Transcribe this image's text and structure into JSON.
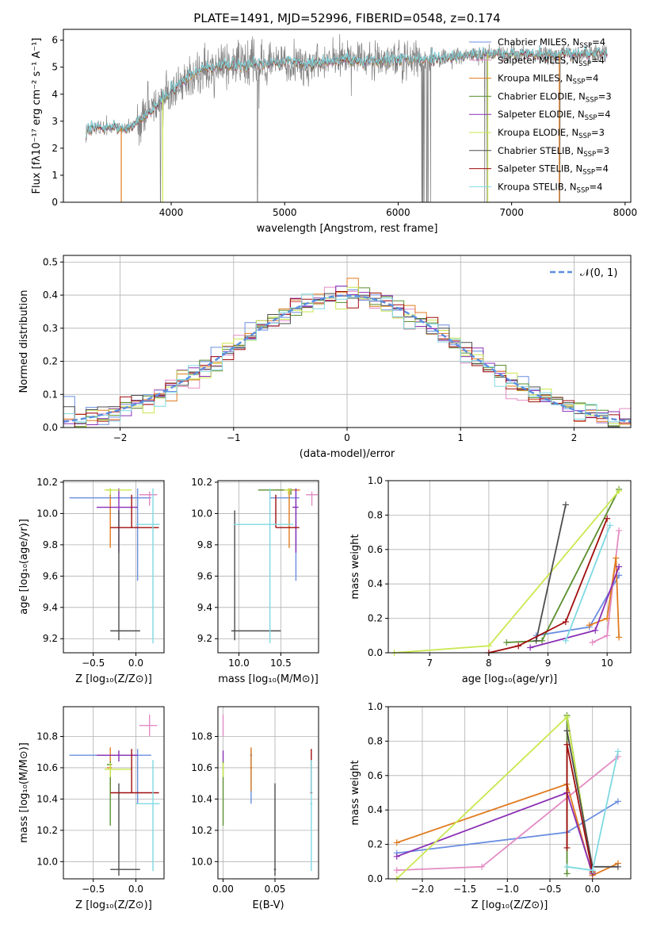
{
  "colors": {
    "Chabrier MILES": "#6b8ee0",
    "Salpeter MILES": "#e38bc4",
    "Kroupa MILES": "#e07b1e",
    "Chabrier ELODIE": "#5a8f2e",
    "Salpeter ELODIE": "#8a2fb5",
    "Kroupa ELODIE": "#c9e84e",
    "Chabrier STELIB": "#4d4d4d",
    "Salpeter STELIB": "#a10d0d",
    "Kroupa STELIB": "#7fd9e2",
    "data": "#808080",
    "normal": "#5b8ee0"
  },
  "chart_data": [
    {
      "id": "spectrum",
      "type": "line",
      "title": "PLATE=1491, MJD=52996, FIBERID=0548, z=0.174",
      "xlabel": "wavelength [Angstrom, rest frame]",
      "ylabel": "Flux [fλ10⁻¹⁷ erg cm⁻² s⁻¹ A⁻¹]",
      "xlim": [
        3050,
        8050
      ],
      "ylim": [
        0,
        6.4
      ],
      "xticks": [
        "4000",
        "5000",
        "6000",
        "7000",
        "8000"
      ],
      "yticks": [
        "0",
        "1",
        "2",
        "3",
        "4",
        "5",
        "6"
      ],
      "legend": [
        {
          "name": "Chabrier MILES, N",
          "sub": "SSP",
          "tail": "=4"
        },
        {
          "name": "Salpeter MILES, N",
          "sub": "SSP",
          "tail": "=4"
        },
        {
          "name": "Kroupa MILES, N",
          "sub": "SSP",
          "tail": "=4"
        },
        {
          "name": "Chabrier ELODIE, N",
          "sub": "SSP",
          "tail": "=3"
        },
        {
          "name": "Salpeter ELODIE, N",
          "sub": "SSP",
          "tail": "=4"
        },
        {
          "name": "Kroupa ELODIE, N",
          "sub": "SSP",
          "tail": "=3"
        },
        {
          "name": "Chabrier STELIB, N",
          "sub": "SSP",
          "tail": "=3"
        },
        {
          "name": "Salpeter STELIB, N",
          "sub": "SSP",
          "tail": "=4"
        },
        {
          "name": "Kroupa STELIB, N",
          "sub": "SSP",
          "tail": "=4"
        }
      ],
      "continuum": [
        [
          3250,
          2.7
        ],
        [
          3500,
          2.8
        ],
        [
          3640,
          2.7
        ],
        [
          3700,
          3.0
        ],
        [
          3850,
          3.5
        ],
        [
          4000,
          4.1
        ],
        [
          4200,
          4.8
        ],
        [
          4300,
          4.9
        ],
        [
          4500,
          5.1
        ],
        [
          4800,
          5.1
        ],
        [
          5000,
          5.2
        ],
        [
          5200,
          5.1
        ],
        [
          5500,
          5.3
        ],
        [
          5800,
          5.2
        ],
        [
          6000,
          5.3
        ],
        [
          6300,
          5.3
        ],
        [
          6500,
          5.4
        ],
        [
          6800,
          5.5
        ],
        [
          7000,
          5.5
        ],
        [
          7300,
          5.45
        ],
        [
          7500,
          5.5
        ],
        [
          7800,
          5.5
        ]
      ]
    },
    {
      "id": "histogram",
      "type": "bar",
      "xlabel": "(data-model)/error",
      "ylabel": "Normed distribution",
      "xlim": [
        -2.5,
        2.5
      ],
      "ylim": [
        0,
        0.52
      ],
      "xticks": [
        "−2",
        "−1",
        "0",
        "1",
        "2"
      ],
      "yticks": [
        "0.0",
        "0.1",
        "0.2",
        "0.3",
        "0.4",
        "0.5"
      ],
      "legend": "𝒩(0, 1)",
      "bin_width": 0.1,
      "bin_start": -2.5
    },
    {
      "id": "age-vs-z",
      "type": "scatter",
      "xlabel": "Z [log₁₀(Z/Z⊙)]",
      "ylabel": "age  [log₁₀(age/yr)]",
      "xlim": [
        -0.85,
        0.33
      ],
      "ylim": [
        9.11,
        10.21
      ],
      "xticks": [
        "−0.5",
        "0.0"
      ],
      "yticks": [
        "9.2",
        "9.4",
        "9.6",
        "9.8",
        "10.0",
        "10.2"
      ]
    },
    {
      "id": "age-vs-mass",
      "type": "scatter",
      "xlabel": "mass [log₁₀(M/M⊙)]",
      "xlim": [
        9.75,
        10.95
      ],
      "ylim": [
        9.11,
        10.21
      ],
      "xticks": [
        "10.0",
        "10.5"
      ],
      "yticks": [
        "9.2",
        "9.4",
        "9.6",
        "9.8",
        "10.0",
        "10.2"
      ]
    },
    {
      "id": "mass-weight-vs-age",
      "type": "line",
      "xlabel": "age  [log₁₀(age/yr)]",
      "ylabel": "mass weight",
      "xlim": [
        6.3,
        10.4
      ],
      "ylim": [
        0,
        1
      ],
      "xticks": [
        "7",
        "8",
        "9",
        "10"
      ],
      "yticks": [
        "0.0",
        "0.2",
        "0.4",
        "0.6",
        "0.8",
        "1.0"
      ]
    },
    {
      "id": "mass-vs-z",
      "type": "scatter",
      "xlabel": "Z [log₁₀(Z/Z⊙)]",
      "ylabel": "mass [log₁₀(M/M⊙)]",
      "xlim": [
        -0.85,
        0.33
      ],
      "ylim": [
        9.89,
        10.99
      ],
      "xticks": [
        "−0.5",
        "0.0"
      ],
      "yticks": [
        "10.0",
        "10.2",
        "10.4",
        "10.6",
        "10.8"
      ]
    },
    {
      "id": "mass-vs-ebv",
      "type": "scatter",
      "xlabel": "E(B-V)",
      "xlim": [
        -0.005,
        0.092
      ],
      "ylim": [
        9.89,
        10.99
      ],
      "xticks": [
        "0.00",
        "0.05"
      ],
      "yticks": [
        "10.0",
        "10.2",
        "10.4",
        "10.6",
        "10.8"
      ]
    },
    {
      "id": "mass-weight-vs-z",
      "type": "line",
      "xlabel": "Z [log₁₀(Z/Z⊙)]",
      "ylabel": "mass weight",
      "xlim": [
        -2.4,
        0.45
      ],
      "ylim": [
        0,
        1
      ],
      "xticks": [
        "−2.0",
        "−1.5",
        "−1.0",
        "−0.5",
        "0.0"
      ],
      "yticks": [
        "0.0",
        "0.2",
        "0.4",
        "0.6",
        "0.8",
        "1.0"
      ]
    }
  ],
  "fits": [
    {
      "model": "Chabrier MILES",
      "Z": 0.02,
      "Zlo": -0.78,
      "Zhi": 0.18,
      "age": 10.1,
      "agelo": 9.57,
      "agehi": 10.16,
      "mass": 10.68,
      "masslo": 10.37,
      "masshi": 10.72,
      "ebv": 0.027,
      "ebvlo": 0.026,
      "ebvhi": 0.028,
      "age_w": [
        [
          8.8,
          0.1
        ],
        [
          9.7,
          0.15
        ],
        [
          10.2,
          0.45
        ]
      ],
      "z_w": [
        [
          -2.3,
          0.15
        ],
        [
          -0.3,
          0.27
        ],
        [
          0.3,
          0.45
        ]
      ]
    },
    {
      "model": "Salpeter MILES",
      "Z": 0.16,
      "Zlo": 0.04,
      "Zhi": 0.25,
      "age": 10.12,
      "agelo": 10.05,
      "agehi": 10.14,
      "mass": 10.87,
      "masslo": 10.8,
      "masshi": 10.94,
      "ebv": 0.0,
      "ebvlo": 0.0,
      "ebvhi": 0.0,
      "age_w": [
        [
          9.75,
          0.06
        ],
        [
          10.0,
          0.1
        ],
        [
          10.2,
          0.71
        ]
      ],
      "z_w": [
        [
          -2.3,
          0.05
        ],
        [
          -1.3,
          0.07
        ],
        [
          0.3,
          0.71
        ]
      ]
    },
    {
      "model": "Kroupa MILES",
      "Z": -0.3,
      "Zlo": -0.34,
      "Zhi": -0.28,
      "age": 10.15,
      "agelo": 9.78,
      "agehi": 10.16,
      "mass": 10.6,
      "masslo": 10.45,
      "masshi": 10.73,
      "ebv": 0.027,
      "ebvlo": 0.026,
      "ebvhi": 0.028,
      "age_w": [
        [
          9.7,
          0.16
        ],
        [
          10.0,
          0.2
        ],
        [
          10.15,
          0.55
        ],
        [
          10.2,
          0.09
        ]
      ],
      "z_w": [
        [
          -2.3,
          0.21
        ],
        [
          -0.3,
          0.55
        ],
        [
          0.0,
          0.02
        ],
        [
          0.3,
          0.09
        ]
      ]
    },
    {
      "model": "Chabrier ELODIE",
      "Z": -0.3,
      "Zlo": -0.34,
      "Zhi": -0.28,
      "age": 10.15,
      "agelo": 10.12,
      "agehi": 10.16,
      "mass": 10.62,
      "masslo": 10.23,
      "masshi": 10.64,
      "ebv": 0.0,
      "ebvlo": 0.0,
      "ebvhi": 0.0,
      "age_w": [
        [
          8.3,
          0.06
        ],
        [
          8.9,
          0.07
        ],
        [
          10.2,
          0.95
        ]
      ],
      "z_w": [
        [
          -0.3,
          0.03
        ],
        [
          -0.3,
          0.95
        ],
        [
          0.0,
          0.03
        ]
      ]
    },
    {
      "model": "Salpeter ELODIE",
      "Z": -0.2,
      "Zlo": -0.46,
      "Zhi": 0.02,
      "age": 10.04,
      "agelo": 9.75,
      "agehi": 10.16,
      "mass": 10.68,
      "masslo": 10.64,
      "masshi": 10.71,
      "ebv": 0.0,
      "ebvlo": 0.0,
      "ebvhi": 0.0,
      "age_w": [
        [
          8.7,
          0.03
        ],
        [
          9.8,
          0.13
        ],
        [
          10.2,
          0.5
        ]
      ],
      "z_w": [
        [
          -2.3,
          0.13
        ],
        [
          -0.3,
          0.5
        ],
        [
          0.0,
          0.03
        ]
      ]
    },
    {
      "model": "Kroupa ELODIE",
      "Z": -0.3,
      "Zlo": -0.37,
      "Zhi": -0.05,
      "age": 10.15,
      "agelo": 10.12,
      "agehi": 10.16,
      "mass": 10.59,
      "masslo": 10.54,
      "masshi": 10.63,
      "ebv": 0.0,
      "ebvlo": 0.0,
      "ebvhi": 0.0,
      "age_w": [
        [
          6.4,
          0.0
        ],
        [
          8.0,
          0.04
        ],
        [
          10.2,
          0.94
        ]
      ],
      "z_w": [
        [
          -2.3,
          0.0
        ],
        [
          -0.3,
          0.94
        ],
        [
          0.0,
          0.04
        ]
      ]
    },
    {
      "model": "Chabrier STELIB",
      "Z": -0.2,
      "Zlo": -0.3,
      "Zhi": 0.05,
      "age": 9.25,
      "agelo": 9.19,
      "agehi": 10.02,
      "mass": 9.95,
      "masslo": 9.91,
      "masshi": 10.5,
      "ebv": 0.05,
      "ebvlo": 0.049,
      "ebvhi": 0.051,
      "age_w": [
        [
          8.8,
          0.07
        ],
        [
          9.3,
          0.86
        ]
      ],
      "z_w": [
        [
          -0.3,
          0.86
        ],
        [
          0.0,
          0.07
        ],
        [
          0.3,
          0.07
        ]
      ]
    },
    {
      "model": "Salpeter STELIB",
      "Z": -0.05,
      "Zlo": -0.3,
      "Zhi": 0.27,
      "age": 9.91,
      "agelo": 9.91,
      "agehi": 10.12,
      "mass": 10.44,
      "masslo": 10.44,
      "masshi": 10.72,
      "ebv": 0.085,
      "ebvlo": 0.084,
      "ebvhi": 0.086,
      "age_w": [
        [
          8.0,
          0.0
        ],
        [
          8.5,
          0.04
        ],
        [
          9.3,
          0.18
        ],
        [
          10.0,
          0.78
        ]
      ],
      "z_w": [
        [
          -0.3,
          0.18
        ],
        [
          -0.3,
          0.78
        ],
        [
          0.0,
          0.04
        ]
      ]
    },
    {
      "model": "Kroupa STELIB",
      "Z": 0.2,
      "Zlo": 0.0,
      "Zhi": 0.28,
      "age": 9.93,
      "agelo": 9.17,
      "agehi": 10.16,
      "mass": 10.37,
      "masslo": 9.94,
      "masshi": 10.65,
      "ebv": 0.085,
      "ebvlo": 0.084,
      "ebvhi": 0.086,
      "age_w": [
        [
          9.3,
          0.07
        ],
        [
          10.05,
          0.74
        ]
      ],
      "z_w": [
        [
          -0.3,
          0.07
        ],
        [
          0.0,
          0.05
        ],
        [
          0.3,
          0.74
        ]
      ]
    }
  ]
}
